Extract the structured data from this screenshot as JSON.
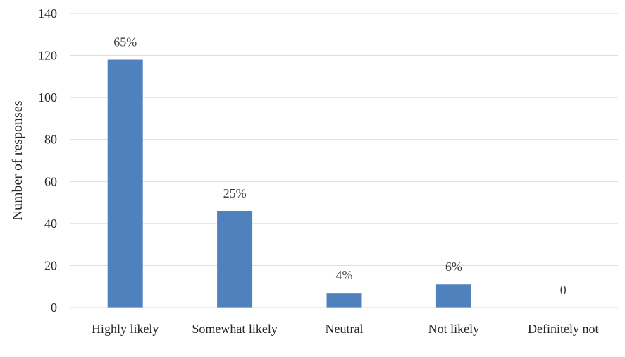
{
  "chart_data": {
    "type": "bar",
    "categories": [
      "Highly likely",
      "Somewhat likely",
      "Neutral",
      "Not likely",
      "Definitely not"
    ],
    "values": [
      118,
      46,
      7,
      11,
      0
    ],
    "data_labels": [
      "65%",
      "25%",
      "4%",
      "6%",
      "0"
    ],
    "ylabel": "Number of responses",
    "ylim": [
      0,
      140
    ],
    "yticks": [
      0,
      20,
      40,
      60,
      80,
      100,
      120,
      140
    ],
    "grid": true,
    "legend": "none",
    "bar_color": "#4F81BD",
    "grid_color": "#D9D9D9"
  }
}
